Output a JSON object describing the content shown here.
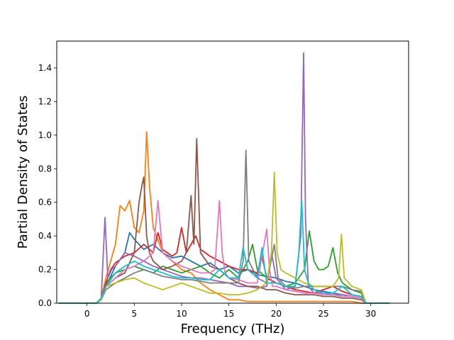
{
  "chart_data": {
    "type": "line",
    "title": "",
    "xlabel": "Frequency (THz)",
    "ylabel": "Partial Density of States",
    "xlim": [
      -3.2,
      34.0
    ],
    "ylim": [
      0.0,
      1.56
    ],
    "xticks": [
      0,
      5,
      10,
      15,
      20,
      25,
      30
    ],
    "yticks": [
      0.0,
      0.2,
      0.4,
      0.6,
      0.8,
      1.0,
      1.2,
      1.4
    ],
    "xtick_labels": [
      "0",
      "5",
      "10",
      "15",
      "20",
      "25",
      "30"
    ],
    "ytick_labels": [
      "0.0",
      "0.2",
      "0.4",
      "0.6",
      "0.8",
      "1.0",
      "1.2",
      "1.4"
    ],
    "grid": false,
    "legend": "none",
    "series": [
      {
        "color": "#1f77b4",
        "x": [
          -3,
          1,
          1.5,
          2,
          3,
          4,
          4.5,
          5,
          6,
          7,
          8,
          9,
          10,
          11,
          12,
          13,
          14,
          15,
          16,
          17,
          18,
          19,
          20,
          21,
          22,
          23,
          24,
          25,
          26,
          27,
          28,
          29,
          29.5,
          32
        ],
        "y": [
          0,
          0,
          0.02,
          0.1,
          0.22,
          0.3,
          0.42,
          0.38,
          0.32,
          0.35,
          0.3,
          0.27,
          0.28,
          0.25,
          0.22,
          0.24,
          0.2,
          0.22,
          0.18,
          0.2,
          0.17,
          0.16,
          0.15,
          0.13,
          0.12,
          0.1,
          0.08,
          0.07,
          0.06,
          0.05,
          0.04,
          0.03,
          0,
          0
        ]
      },
      {
        "color": "#ff7f0e",
        "x": [
          -3,
          1,
          1.5,
          2,
          3,
          3.5,
          4,
          4.5,
          5,
          5.5,
          6,
          6.3,
          6.6,
          7,
          8,
          9,
          10,
          11,
          12,
          13,
          14,
          15,
          16,
          17,
          18,
          20,
          22,
          24,
          26,
          28,
          29,
          32
        ],
        "y": [
          0,
          0,
          0.03,
          0.15,
          0.35,
          0.58,
          0.55,
          0.61,
          0.45,
          0.42,
          0.55,
          1.02,
          0.7,
          0.45,
          0.3,
          0.25,
          0.2,
          0.18,
          0.12,
          0.08,
          0.05,
          0.02,
          0.02,
          0.01,
          0.01,
          0.01,
          0.01,
          0.01,
          0.01,
          0.01,
          0,
          0
        ]
      },
      {
        "color": "#2ca02c",
        "x": [
          -3,
          1,
          1.5,
          2,
          3,
          4,
          5,
          6,
          7,
          8,
          9,
          10,
          11,
          12,
          13,
          14,
          15,
          16,
          17,
          17.5,
          18,
          19,
          20,
          21,
          22,
          23,
          23.5,
          24,
          24.5,
          25,
          25.5,
          26,
          26.5,
          27,
          28,
          29,
          29.5,
          32
        ],
        "y": [
          0,
          0,
          0.02,
          0.12,
          0.18,
          0.2,
          0.22,
          0.2,
          0.18,
          0.22,
          0.2,
          0.18,
          0.2,
          0.22,
          0.18,
          0.15,
          0.2,
          0.15,
          0.25,
          0.35,
          0.2,
          0.15,
          0.12,
          0.1,
          0.12,
          0.2,
          0.43,
          0.25,
          0.2,
          0.2,
          0.22,
          0.33,
          0.18,
          0.12,
          0.08,
          0.06,
          0,
          0
        ]
      },
      {
        "color": "#d62728",
        "x": [
          -3,
          1,
          1.5,
          2,
          2.5,
          3,
          4,
          5,
          6,
          7,
          7.5,
          8,
          9,
          9.5,
          10,
          10.5,
          11,
          11.5,
          12,
          13,
          14,
          15,
          16,
          17,
          18,
          18.5,
          19,
          20,
          21,
          22,
          23,
          24,
          25,
          26,
          27,
          28,
          29,
          29.5,
          32
        ],
        "y": [
          0,
          0,
          0.03,
          0.12,
          0.2,
          0.24,
          0.28,
          0.3,
          0.35,
          0.3,
          0.42,
          0.32,
          0.28,
          0.3,
          0.45,
          0.3,
          0.35,
          0.4,
          0.32,
          0.28,
          0.25,
          0.22,
          0.2,
          0.2,
          0.18,
          0.28,
          0.15,
          0.12,
          0.1,
          0.08,
          0.07,
          0.06,
          0.08,
          0.1,
          0.07,
          0.05,
          0.04,
          0,
          0
        ]
      },
      {
        "color": "#9467bd",
        "x": [
          -3,
          1,
          1.5,
          1.9,
          2.2,
          2.6,
          3,
          4,
          5,
          6,
          7,
          8,
          9,
          10,
          11,
          12,
          13,
          14,
          15,
          16,
          17,
          18,
          19,
          19.5,
          20,
          21,
          22,
          22.6,
          22.9,
          23.1,
          23.4,
          24,
          25,
          26,
          27,
          28,
          29,
          29.5,
          32
        ],
        "y": [
          0,
          0,
          0.03,
          0.51,
          0.15,
          0.2,
          0.22,
          0.3,
          0.28,
          0.25,
          0.22,
          0.2,
          0.18,
          0.16,
          0.15,
          0.15,
          0.14,
          0.13,
          0.12,
          0.1,
          0.1,
          0.09,
          0.1,
          0.3,
          0.15,
          0.08,
          0.1,
          0.4,
          1.49,
          0.5,
          0.1,
          0.06,
          0.06,
          0.05,
          0.05,
          0.04,
          0.03,
          0,
          0
        ]
      },
      {
        "color": "#8c564b",
        "x": [
          -3,
          1,
          1.5,
          2,
          3,
          4,
          5,
          5.5,
          5.8,
          6,
          6.3,
          6.6,
          7,
          8,
          9,
          10,
          10.5,
          11,
          11.3,
          11.6,
          12,
          13,
          14,
          15,
          16,
          17,
          18,
          19,
          20,
          21,
          22,
          23,
          24,
          25,
          26,
          27,
          28,
          29,
          29.5,
          32
        ],
        "y": [
          0,
          0,
          0.02,
          0.1,
          0.15,
          0.18,
          0.3,
          0.6,
          0.7,
          0.75,
          0.4,
          0.3,
          0.25,
          0.2,
          0.22,
          0.25,
          0.3,
          0.64,
          0.35,
          0.98,
          0.3,
          0.22,
          0.2,
          0.15,
          0.12,
          0.1,
          0.1,
          0.08,
          0.08,
          0.06,
          0.05,
          0.05,
          0.05,
          0.04,
          0.04,
          0.03,
          0.03,
          0.02,
          0,
          0
        ]
      },
      {
        "color": "#e377c2",
        "x": [
          -3,
          1,
          1.5,
          2,
          3,
          4,
          5,
          6,
          7,
          7.5,
          8,
          9,
          10,
          11,
          12,
          13,
          13.5,
          14,
          14.3,
          14.6,
          15,
          16,
          17,
          18,
          19,
          19.3,
          19.6,
          20,
          21,
          22,
          23,
          24,
          25,
          26,
          27,
          28,
          29,
          29.5,
          32
        ],
        "y": [
          0,
          0,
          0.02,
          0.1,
          0.15,
          0.2,
          0.22,
          0.25,
          0.3,
          0.61,
          0.3,
          0.25,
          0.22,
          0.2,
          0.18,
          0.18,
          0.2,
          0.61,
          0.3,
          0.18,
          0.15,
          0.14,
          0.12,
          0.12,
          0.44,
          0.2,
          0.1,
          0.1,
          0.08,
          0.07,
          0.06,
          0.06,
          0.05,
          0.05,
          0.04,
          0.04,
          0.03,
          0,
          0
        ]
      },
      {
        "color": "#7f7f7f",
        "x": [
          -3,
          1,
          1.5,
          2,
          3,
          4,
          5,
          6,
          7,
          8,
          9,
          10,
          11,
          12,
          13,
          14,
          15,
          16,
          16.5,
          16.8,
          17.1,
          18,
          19,
          19.8,
          20.2,
          21,
          22,
          23,
          24,
          25,
          26,
          27,
          28,
          29,
          29.5,
          32
        ],
        "y": [
          0,
          0,
          0.02,
          0.08,
          0.12,
          0.15,
          0.18,
          0.2,
          0.18,
          0.16,
          0.15,
          0.14,
          0.14,
          0.13,
          0.12,
          0.12,
          0.12,
          0.12,
          0.25,
          0.91,
          0.25,
          0.15,
          0.12,
          0.35,
          0.15,
          0.1,
          0.09,
          0.1,
          0.1,
          0.1,
          0.1,
          0.1,
          0.08,
          0.07,
          0,
          0
        ]
      },
      {
        "color": "#bcbd22",
        "x": [
          -3,
          1,
          1.5,
          2,
          3,
          4,
          5,
          6,
          7,
          8,
          9,
          10,
          11,
          12,
          13,
          14,
          15,
          16,
          17,
          18,
          19,
          19.5,
          19.8,
          20.1,
          20.5,
          21,
          22,
          23,
          24,
          25,
          26,
          26.6,
          26.9,
          27.2,
          28,
          29,
          29.5,
          32
        ],
        "y": [
          0,
          0,
          0.02,
          0.1,
          0.12,
          0.14,
          0.15,
          0.12,
          0.1,
          0.08,
          0.1,
          0.12,
          0.1,
          0.08,
          0.06,
          0.06,
          0.05,
          0.05,
          0.06,
          0.08,
          0.12,
          0.3,
          0.78,
          0.3,
          0.2,
          0.18,
          0.15,
          0.12,
          0.1,
          0.1,
          0.1,
          0.15,
          0.41,
          0.15,
          0.1,
          0.08,
          0,
          0
        ]
      },
      {
        "color": "#17becf",
        "x": [
          -3,
          1,
          1.5,
          2,
          3,
          4,
          5,
          6,
          7,
          8,
          9,
          10,
          11,
          12,
          13,
          14,
          15,
          16,
          16.5,
          17,
          18,
          18.5,
          19,
          20,
          21,
          22,
          22.4,
          22.7,
          23,
          23.4,
          24,
          25,
          26,
          27,
          28,
          29,
          29.5,
          32
        ],
        "y": [
          0,
          0,
          0.03,
          0.1,
          0.18,
          0.22,
          0.25,
          0.22,
          0.2,
          0.18,
          0.16,
          0.15,
          0.15,
          0.14,
          0.14,
          0.2,
          0.15,
          0.15,
          0.33,
          0.2,
          0.15,
          0.33,
          0.12,
          0.12,
          0.1,
          0.1,
          0.3,
          0.61,
          0.2,
          0.12,
          0.08,
          0.06,
          0.06,
          0.1,
          0.05,
          0.04,
          0,
          0
        ]
      }
    ]
  }
}
